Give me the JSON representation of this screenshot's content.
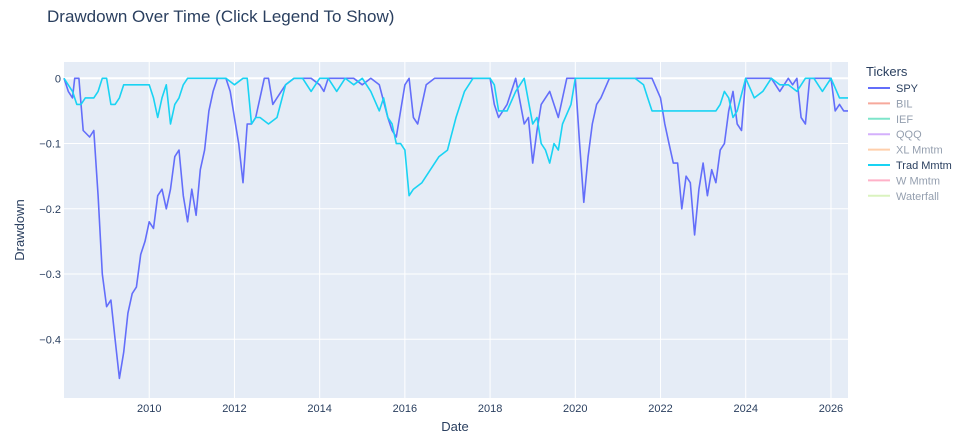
{
  "chart_data": {
    "type": "line",
    "title": "Drawdown Over Time (Click Legend To Show)",
    "xlabel": "Date",
    "ylabel": "Drawdown",
    "xlim": [
      2008.0,
      2026.4
    ],
    "ylim": [
      -0.49,
      0.025
    ],
    "x_ticks": [
      2010,
      2012,
      2014,
      2016,
      2018,
      2020,
      2022,
      2024,
      2026
    ],
    "y_ticks": [
      0,
      -0.1,
      -0.2,
      -0.3,
      -0.4
    ],
    "y_tick_labels": [
      "0",
      "−0.1",
      "−0.2",
      "−0.3",
      "−0.4"
    ],
    "grid": true,
    "plot_bg": "#e5ecf6",
    "legend": {
      "title": "Tickers",
      "placement": "right",
      "items": [
        {
          "name": "SPY",
          "color": "#636efa",
          "visible": true
        },
        {
          "name": "BIL",
          "color": "#ef553b",
          "visible": false
        },
        {
          "name": "IEF",
          "color": "#00cc96",
          "visible": false
        },
        {
          "name": "QQQ",
          "color": "#ab63fa",
          "visible": false
        },
        {
          "name": "XL Mmtm",
          "color": "#ffa15a",
          "visible": false
        },
        {
          "name": "Trad Mmtm",
          "color": "#19d3f3",
          "visible": true
        },
        {
          "name": "W Mmtm",
          "color": "#ff6692",
          "visible": false
        },
        {
          "name": "Waterfall",
          "color": "#b6e880",
          "visible": false
        }
      ]
    },
    "series": [
      {
        "name": "SPY",
        "color": "#636efa",
        "x": [
          2008.0,
          2008.1,
          2008.2,
          2008.25,
          2008.35,
          2008.45,
          2008.6,
          2008.7,
          2008.8,
          2008.9,
          2009.0,
          2009.1,
          2009.2,
          2009.3,
          2009.4,
          2009.5,
          2009.6,
          2009.7,
          2009.8,
          2009.9,
          2010.0,
          2010.1,
          2010.2,
          2010.3,
          2010.4,
          2010.5,
          2010.6,
          2010.7,
          2010.8,
          2010.9,
          2011.0,
          2011.1,
          2011.2,
          2011.3,
          2011.4,
          2011.5,
          2011.6,
          2011.7,
          2011.8,
          2011.9,
          2012.0,
          2012.1,
          2012.2,
          2012.3,
          2012.4,
          2012.5,
          2012.6,
          2012.7,
          2012.8,
          2012.9,
          2013.0,
          2013.2,
          2013.4,
          2013.6,
          2013.8,
          2014.0,
          2014.1,
          2014.2,
          2014.4,
          2014.6,
          2014.8,
          2015.0,
          2015.2,
          2015.4,
          2015.6,
          2015.7,
          2015.8,
          2015.9,
          2016.0,
          2016.1,
          2016.2,
          2016.3,
          2016.5,
          2016.7,
          2017.0,
          2017.5,
          2018.0,
          2018.1,
          2018.2,
          2018.4,
          2018.6,
          2018.8,
          2018.9,
          2019.0,
          2019.1,
          2019.2,
          2019.4,
          2019.6,
          2019.8,
          2020.0,
          2020.1,
          2020.2,
          2020.3,
          2020.4,
          2020.5,
          2020.6,
          2020.8,
          2021.0,
          2021.2,
          2021.4,
          2021.6,
          2021.8,
          2022.0,
          2022.1,
          2022.2,
          2022.3,
          2022.4,
          2022.5,
          2022.6,
          2022.7,
          2022.8,
          2022.9,
          2023.0,
          2023.1,
          2023.2,
          2023.3,
          2023.4,
          2023.5,
          2023.6,
          2023.7,
          2023.8,
          2023.9,
          2024.0,
          2024.2,
          2024.4,
          2024.6,
          2024.8,
          2025.0,
          2025.1,
          2025.2,
          2025.3,
          2025.4,
          2025.5,
          2025.7,
          2025.9,
          2026.0,
          2026.1,
          2026.2,
          2026.3,
          2026.4
        ],
        "y": [
          0,
          -0.02,
          -0.03,
          0,
          0,
          -0.08,
          -0.09,
          -0.08,
          -0.18,
          -0.3,
          -0.35,
          -0.34,
          -0.4,
          -0.46,
          -0.42,
          -0.36,
          -0.33,
          -0.32,
          -0.27,
          -0.25,
          -0.22,
          -0.23,
          -0.18,
          -0.17,
          -0.2,
          -0.17,
          -0.12,
          -0.11,
          -0.18,
          -0.22,
          -0.17,
          -0.21,
          -0.14,
          -0.11,
          -0.05,
          -0.02,
          0,
          0,
          0,
          -0.02,
          -0.06,
          -0.1,
          -0.16,
          -0.07,
          -0.07,
          -0.06,
          -0.03,
          0,
          0,
          -0.04,
          -0.03,
          -0.01,
          0,
          0,
          0,
          -0.01,
          -0.02,
          0,
          0,
          0,
          0,
          -0.01,
          0,
          -0.01,
          -0.06,
          -0.08,
          -0.09,
          -0.05,
          -0.01,
          0,
          -0.06,
          -0.07,
          -0.01,
          0,
          0,
          0,
          0,
          -0.04,
          -0.06,
          -0.04,
          0,
          -0.07,
          -0.06,
          -0.13,
          -0.08,
          -0.04,
          -0.02,
          -0.06,
          0,
          0,
          -0.1,
          -0.19,
          -0.12,
          -0.07,
          -0.04,
          -0.03,
          0,
          0,
          0,
          0,
          0,
          0,
          -0.03,
          -0.07,
          -0.1,
          -0.13,
          -0.13,
          -0.2,
          -0.15,
          -0.16,
          -0.24,
          -0.17,
          -0.13,
          -0.18,
          -0.14,
          -0.16,
          -0.11,
          -0.1,
          -0.05,
          -0.02,
          -0.07,
          -0.08,
          0,
          0,
          0,
          0,
          -0.02,
          0,
          -0.01,
          0,
          -0.06,
          -0.07,
          0,
          0,
          0,
          0,
          -0.05,
          -0.04,
          -0.05,
          -0.05
        ]
      },
      {
        "name": "Trad Mmtm",
        "color": "#19d3f3",
        "x": [
          2008.0,
          2008.2,
          2008.3,
          2008.4,
          2008.5,
          2008.6,
          2008.7,
          2008.8,
          2008.9,
          2009.0,
          2009.1,
          2009.2,
          2009.3,
          2009.4,
          2009.6,
          2009.8,
          2009.9,
          2010.0,
          2010.1,
          2010.2,
          2010.3,
          2010.4,
          2010.5,
          2010.6,
          2010.7,
          2010.8,
          2010.9,
          2011.0,
          2011.2,
          2011.5,
          2011.8,
          2012.0,
          2012.2,
          2012.3,
          2012.4,
          2012.5,
          2012.6,
          2012.8,
          2013.0,
          2013.2,
          2013.4,
          2013.6,
          2013.8,
          2014.0,
          2014.2,
          2014.4,
          2014.6,
          2014.8,
          2015.0,
          2015.2,
          2015.4,
          2015.5,
          2015.6,
          2015.7,
          2015.8,
          2015.9,
          2016.0,
          2016.1,
          2016.2,
          2016.4,
          2016.6,
          2016.8,
          2017.0,
          2017.2,
          2017.4,
          2017.6,
          2017.8,
          2018.0,
          2018.1,
          2018.2,
          2018.4,
          2018.6,
          2018.8,
          2019.0,
          2019.1,
          2019.2,
          2019.3,
          2019.4,
          2019.5,
          2019.6,
          2019.7,
          2019.9,
          2020.0,
          2020.2,
          2020.4,
          2020.6,
          2020.8,
          2021.0,
          2021.2,
          2021.4,
          2021.6,
          2021.7,
          2021.8,
          2021.9,
          2022.0,
          2022.2,
          2022.5,
          2022.8,
          2023.0,
          2023.3,
          2023.4,
          2023.5,
          2023.6,
          2023.7,
          2023.8,
          2024.0,
          2024.2,
          2024.4,
          2024.6,
          2024.8,
          2025.0,
          2025.2,
          2025.4,
          2025.6,
          2025.8,
          2026.0,
          2026.2,
          2026.4
        ],
        "y": [
          0,
          -0.02,
          -0.04,
          -0.04,
          -0.03,
          -0.03,
          -0.03,
          -0.02,
          0,
          0,
          -0.04,
          -0.04,
          -0.03,
          -0.01,
          -0.01,
          -0.01,
          -0.01,
          -0.01,
          -0.03,
          -0.06,
          -0.03,
          -0.01,
          -0.07,
          -0.04,
          -0.03,
          -0.01,
          0,
          0,
          0,
          0,
          0,
          -0.01,
          0,
          0,
          -0.07,
          -0.06,
          -0.06,
          -0.07,
          -0.06,
          -0.01,
          0,
          0,
          -0.02,
          0,
          0,
          -0.02,
          0,
          -0.01,
          0,
          -0.02,
          -0.05,
          -0.03,
          -0.06,
          -0.07,
          -0.1,
          -0.1,
          -0.11,
          -0.18,
          -0.17,
          -0.16,
          -0.14,
          -0.12,
          -0.11,
          -0.06,
          -0.02,
          0,
          0,
          0,
          -0.01,
          -0.05,
          -0.05,
          -0.02,
          0,
          -0.07,
          -0.06,
          -0.1,
          -0.11,
          -0.13,
          -0.1,
          -0.11,
          -0.07,
          -0.04,
          0,
          0,
          0,
          0,
          0,
          0,
          0,
          0,
          -0.01,
          -0.03,
          -0.05,
          -0.05,
          -0.05,
          -0.05,
          -0.05,
          -0.05,
          -0.05,
          -0.05,
          -0.04,
          -0.02,
          -0.03,
          -0.06,
          -0.05,
          0,
          -0.03,
          -0.02,
          0,
          -0.01,
          -0.01,
          -0.02,
          0,
          0,
          -0.02,
          0,
          -0.03,
          -0.03
        ]
      }
    ]
  }
}
